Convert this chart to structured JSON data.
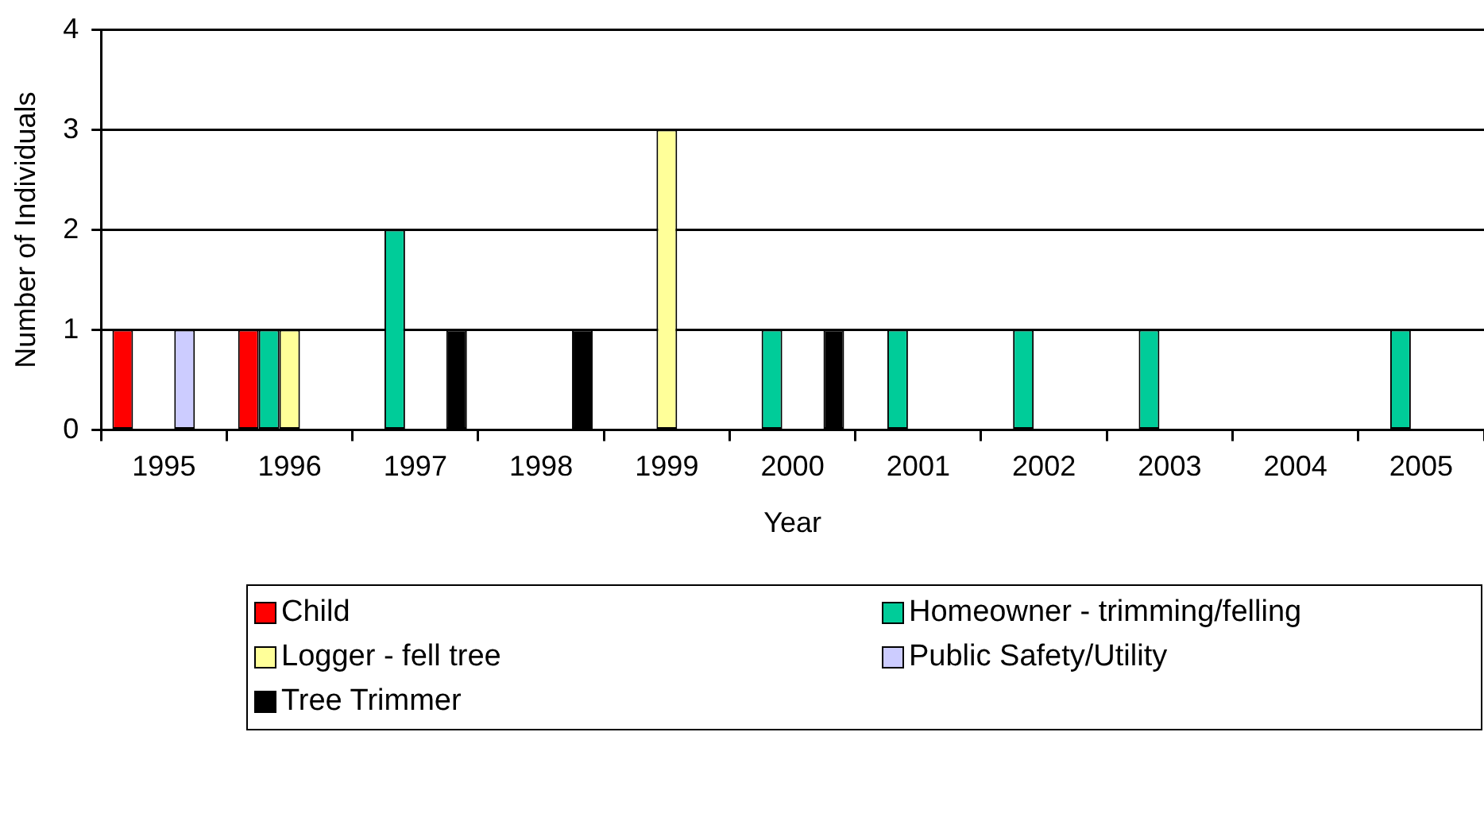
{
  "chart_data": {
    "type": "bar",
    "xlabel": "Year",
    "ylabel": "Number of Individuals",
    "categories": [
      "1995",
      "1996",
      "1997",
      "1998",
      "1999",
      "2000",
      "2001",
      "2002",
      "2003",
      "2004",
      "2005"
    ],
    "series": [
      {
        "name": "Child",
        "color": "#ff0000",
        "values": [
          1,
          1,
          0,
          0,
          0,
          0,
          0,
          0,
          0,
          0,
          0
        ]
      },
      {
        "name": "Homeowner - trimming/felling",
        "color": "#00cc99",
        "values": [
          0,
          1,
          2,
          0,
          0,
          1,
          1,
          1,
          1,
          0,
          1
        ]
      },
      {
        "name": "Logger - fell tree",
        "color": "#ffff99",
        "values": [
          0,
          1,
          0,
          0,
          3,
          0,
          0,
          0,
          0,
          0,
          0
        ]
      },
      {
        "name": "Public Safety/Utility",
        "color": "#ccccff",
        "values": [
          1,
          0,
          0,
          0,
          0,
          0,
          0,
          0,
          0,
          0,
          0
        ]
      },
      {
        "name": "Tree Trimmer",
        "color": "#000000",
        "values": [
          0,
          0,
          1,
          1,
          0,
          1,
          0,
          0,
          0,
          0,
          0
        ]
      }
    ],
    "ylim": [
      0,
      4
    ],
    "yticks": [
      0,
      1,
      2,
      3,
      4
    ],
    "grid": "y",
    "legend": "bottom"
  }
}
